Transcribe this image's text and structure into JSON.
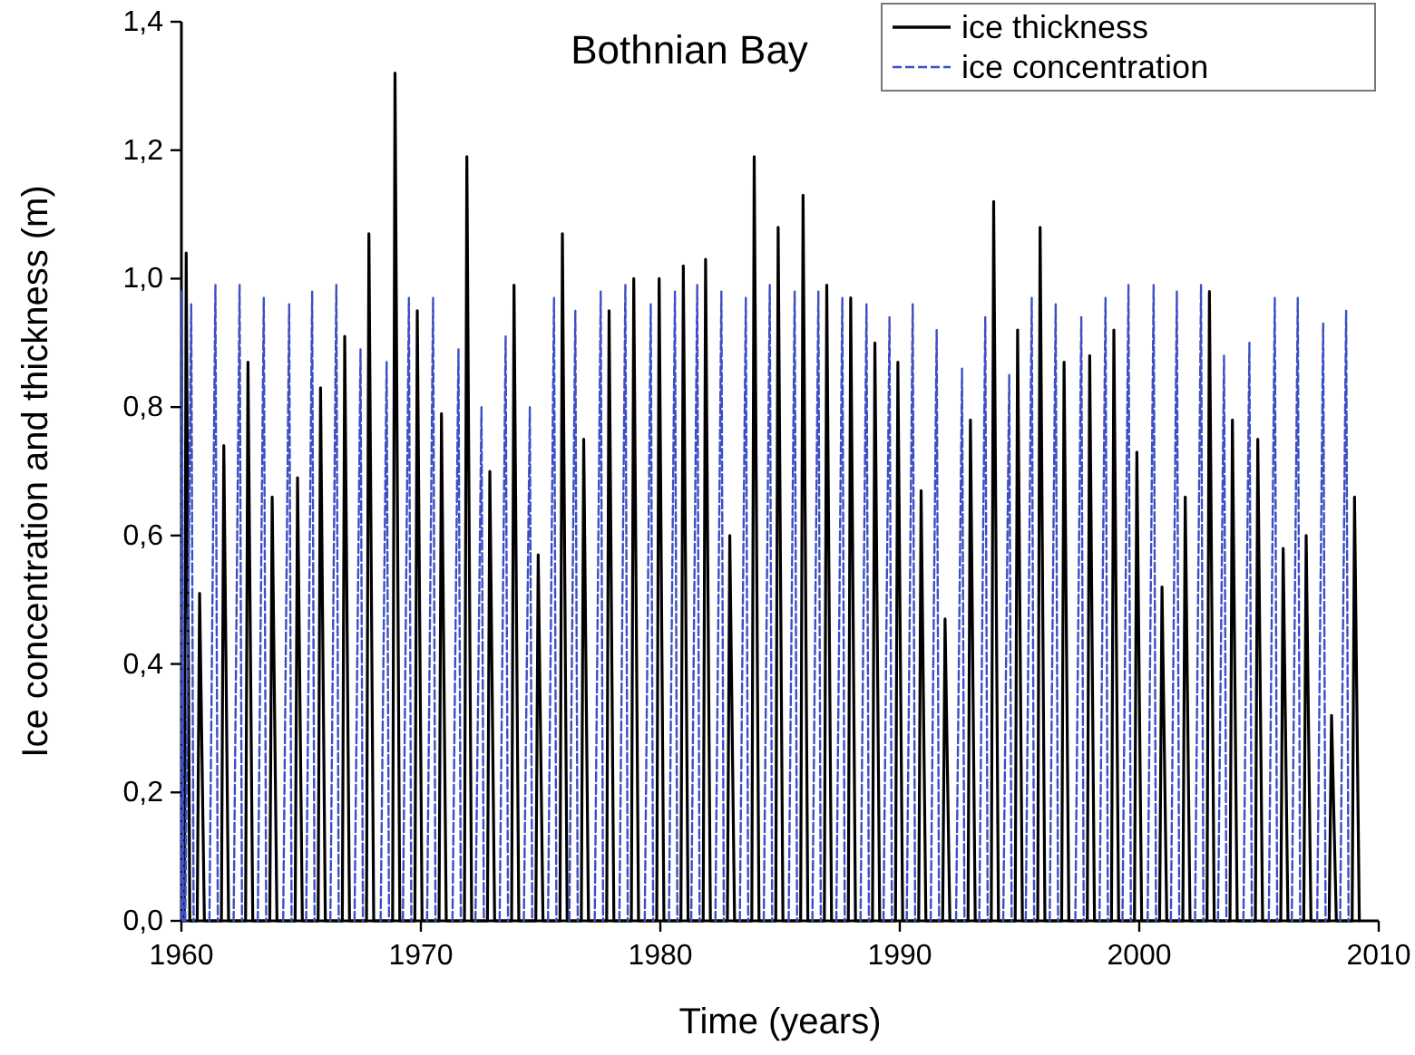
{
  "chart_data": {
    "type": "line",
    "title": "Bothnian Bay",
    "xlabel": "Time (years)",
    "ylabel": "Ice concentration and thickness (m)",
    "series": [
      {
        "name": "ice thickness",
        "color": "#000000",
        "line_style": "solid",
        "x": [
          1960.12,
          1960.2,
          1960.35,
          1960.66,
          1960.76,
          1960.96,
          1961.67,
          1961.77,
          1961.97,
          1962.68,
          1962.78,
          1962.98,
          1963.69,
          1963.79,
          1963.99,
          1964.75,
          1964.85,
          1965.05,
          1965.71,
          1965.81,
          1966.01,
          1966.72,
          1966.82,
          1967.02,
          1967.73,
          1967.83,
          1968.03,
          1968.82,
          1968.92,
          1969.12,
          1969.75,
          1969.85,
          1970.05,
          1970.76,
          1970.86,
          1971.06,
          1971.82,
          1971.92,
          1972.12,
          1972.78,
          1972.88,
          1973.08,
          1973.79,
          1973.89,
          1974.09,
          1974.8,
          1974.9,
          1975.1,
          1975.81,
          1975.91,
          1976.11,
          1976.7,
          1976.8,
          1977,
          1977.76,
          1977.86,
          1978.06,
          1978.79,
          1978.89,
          1979.09,
          1979.85,
          1979.95,
          1980.15,
          1980.86,
          1980.96,
          1981.16,
          1981.79,
          1981.89,
          1982.09,
          1982.8,
          1982.9,
          1983.1,
          1983.82,
          1983.92,
          1984.12,
          1984.82,
          1984.92,
          1985.12,
          1985.86,
          1985.96,
          1986.16,
          1986.85,
          1986.95,
          1987.15,
          1987.85,
          1987.95,
          1988.15,
          1988.86,
          1988.96,
          1989.16,
          1989.82,
          1989.92,
          1990.12,
          1990.79,
          1990.89,
          1991.09,
          1991.79,
          1991.89,
          1992.09,
          1992.85,
          1992.95,
          1993.15,
          1993.82,
          1993.92,
          1994.12,
          1994.82,
          1994.92,
          1995.12,
          1995.76,
          1995.86,
          1996.06,
          1996.76,
          1996.86,
          1997.06,
          1997.83,
          1997.93,
          1998.13,
          1998.84,
          1998.94,
          1999.14,
          1999.8,
          1999.9,
          2000.1,
          2000.85,
          2000.95,
          2001.15,
          2001.82,
          2001.92,
          2002.12,
          2002.83,
          2002.93,
          2003.13,
          2003.79,
          2003.89,
          2004.09,
          2004.85,
          2004.95,
          2005.15,
          2005.91,
          2006.01,
          2006.21,
          2006.87,
          2006.97,
          2007.17,
          2007.93,
          2008.03,
          2008.23,
          2008.89,
          2008.99,
          2009.19
        ],
        "values": [
          0,
          1.04,
          0,
          0,
          0.51,
          0,
          0,
          0.74,
          0,
          0,
          0.87,
          0,
          0,
          0.66,
          0,
          0,
          0.69,
          0,
          0,
          0.83,
          0,
          0,
          0.91,
          0,
          0,
          1.07,
          0,
          0,
          1.32,
          0,
          0,
          0.95,
          0,
          0,
          0.79,
          0,
          0,
          1.19,
          0,
          0,
          0.7,
          0,
          0,
          0.99,
          0,
          0,
          0.57,
          0,
          0,
          1.07,
          0,
          0,
          0.75,
          0,
          0,
          0.95,
          0,
          0,
          1,
          0,
          0,
          1,
          0,
          0,
          1.02,
          0,
          0,
          1.03,
          0,
          0,
          0.6,
          0,
          0,
          1.19,
          0,
          0,
          1.08,
          0,
          0,
          1.13,
          0,
          0,
          0.99,
          0,
          0,
          0.97,
          0,
          0,
          0.9,
          0,
          0,
          0.87,
          0,
          0,
          0.67,
          0,
          0,
          0.47,
          0,
          0,
          0.78,
          0,
          0,
          1.12,
          0,
          0,
          0.92,
          0,
          0,
          1.08,
          0,
          0,
          0.87,
          0,
          0,
          0.88,
          0,
          0,
          0.92,
          0,
          0,
          0.73,
          0,
          0,
          0.52,
          0,
          0,
          0.66,
          0,
          0,
          0.98,
          0,
          0,
          0.78,
          0,
          0,
          0.75,
          0,
          0,
          0.58,
          0,
          0,
          0.6,
          0,
          0,
          0.32,
          0,
          0,
          0.66,
          0
        ]
      },
      {
        "name": "ice concentration",
        "color": "#3c4fc4",
        "line_style": "dashed",
        "x": [
          1960,
          1960.02,
          1960.08,
          1960.1,
          1960.16,
          1960.41,
          1960.51,
          1960.56,
          1961.17,
          1961.42,
          1961.52,
          1961.57,
          1962.18,
          1962.43,
          1962.53,
          1962.58,
          1963.19,
          1963.44,
          1963.54,
          1963.59,
          1964.25,
          1964.5,
          1964.6,
          1964.65,
          1965.21,
          1965.46,
          1965.56,
          1965.61,
          1966.22,
          1966.47,
          1966.57,
          1966.62,
          1967.23,
          1967.48,
          1967.58,
          1967.63,
          1968.32,
          1968.57,
          1968.67,
          1968.72,
          1969.25,
          1969.5,
          1969.6,
          1969.65,
          1970.26,
          1970.51,
          1970.61,
          1970.66,
          1971.32,
          1971.57,
          1971.67,
          1971.72,
          1972.28,
          1972.53,
          1972.63,
          1972.68,
          1973.29,
          1973.54,
          1973.64,
          1973.69,
          1974.3,
          1974.55,
          1974.65,
          1974.7,
          1975.31,
          1975.56,
          1975.66,
          1975.71,
          1976.2,
          1976.45,
          1976.55,
          1976.6,
          1977.26,
          1977.51,
          1977.61,
          1977.66,
          1978.29,
          1978.54,
          1978.64,
          1978.69,
          1979.35,
          1979.6,
          1979.7,
          1979.75,
          1980.36,
          1980.61,
          1980.71,
          1980.76,
          1981.29,
          1981.54,
          1981.64,
          1981.69,
          1982.3,
          1982.55,
          1982.65,
          1982.7,
          1983.32,
          1983.57,
          1983.67,
          1983.72,
          1984.32,
          1984.57,
          1984.67,
          1984.72,
          1985.36,
          1985.61,
          1985.71,
          1985.76,
          1986.35,
          1986.6,
          1986.7,
          1986.75,
          1987.35,
          1987.6,
          1987.7,
          1987.75,
          1988.36,
          1988.61,
          1988.71,
          1988.76,
          1989.32,
          1989.57,
          1989.67,
          1989.72,
          1990.29,
          1990.54,
          1990.64,
          1990.69,
          1991.29,
          1991.54,
          1991.64,
          1991.69,
          1992.35,
          1992.6,
          1992.7,
          1992.75,
          1993.32,
          1993.57,
          1993.67,
          1993.72,
          1994.32,
          1994.57,
          1994.67,
          1994.72,
          1995.26,
          1995.51,
          1995.61,
          1995.66,
          1996.26,
          1996.51,
          1996.61,
          1996.66,
          1997.33,
          1997.58,
          1997.68,
          1997.73,
          1998.34,
          1998.59,
          1998.69,
          1998.74,
          1999.3,
          1999.55,
          1999.65,
          1999.7,
          2000.35,
          2000.6,
          2000.7,
          2000.75,
          2001.32,
          2001.57,
          2001.67,
          2001.72,
          2002.33,
          2002.58,
          2002.68,
          2002.73,
          2003.29,
          2003.54,
          2003.64,
          2003.69,
          2004.35,
          2004.6,
          2004.7,
          2004.75,
          2005.41,
          2005.66,
          2005.76,
          2005.81,
          2006.37,
          2006.62,
          2006.72,
          2006.77,
          2007.43,
          2007.68,
          2007.78,
          2007.83,
          2008.39,
          2008.64,
          2008.74
        ],
        "values": [
          0,
          0.98,
          0,
          null,
          0,
          0.96,
          0,
          null,
          0,
          0.99,
          0,
          null,
          0,
          0.99,
          0,
          null,
          0,
          0.97,
          0,
          null,
          0,
          0.96,
          0,
          null,
          0,
          0.98,
          0,
          null,
          0,
          0.99,
          0,
          null,
          0,
          0.89,
          0,
          null,
          0,
          0.87,
          0,
          null,
          0,
          0.97,
          0,
          null,
          0,
          0.97,
          0,
          null,
          0,
          0.89,
          0,
          null,
          0,
          0.8,
          0,
          null,
          0,
          0.91,
          0,
          null,
          0,
          0.8,
          0,
          null,
          0,
          0.97,
          0,
          null,
          0,
          0.95,
          0,
          null,
          0,
          0.98,
          0,
          null,
          0,
          0.99,
          0,
          null,
          0,
          0.96,
          0,
          null,
          0,
          0.98,
          0,
          null,
          0,
          0.99,
          0,
          null,
          0,
          0.98,
          0,
          null,
          0,
          0.97,
          0,
          null,
          0,
          0.99,
          0,
          null,
          0,
          0.98,
          0,
          null,
          0,
          0.98,
          0,
          null,
          0,
          0.97,
          0,
          null,
          0,
          0.96,
          0,
          null,
          0,
          0.94,
          0,
          null,
          0,
          0.96,
          0,
          null,
          0,
          0.92,
          0,
          null,
          0,
          0.86,
          0,
          null,
          0,
          0.94,
          0,
          null,
          0,
          0.85,
          0,
          null,
          0,
          0.97,
          0,
          null,
          0,
          0.96,
          0,
          null,
          0,
          0.94,
          0,
          null,
          0,
          0.97,
          0,
          null,
          0,
          0.99,
          0,
          null,
          0,
          0.99,
          0,
          null,
          0,
          0.98,
          0,
          null,
          0,
          0.99,
          0,
          null,
          0,
          0.88,
          0,
          null,
          0,
          0.9,
          0,
          null,
          0,
          0.97,
          0,
          null,
          0,
          0.97,
          0,
          null,
          0,
          0.93,
          0,
          null,
          0,
          0.95,
          0
        ]
      }
    ],
    "xlim": [
      1960,
      2010
    ],
    "xticks": [
      1960,
      1970,
      1980,
      1990,
      2000,
      2010
    ],
    "ylim": [
      0,
      1.4
    ],
    "yticks": [
      {
        "value": 0,
        "label": "0,0"
      },
      {
        "value": 0.2,
        "label": "0,2"
      },
      {
        "value": 0.4,
        "label": "0,4"
      },
      {
        "value": 0.6,
        "label": "0,6"
      },
      {
        "value": 0.8,
        "label": "0,8"
      },
      {
        "value": 1,
        "label": "1,0"
      },
      {
        "value": 1.2,
        "label": "1,2"
      },
      {
        "value": 1.4,
        "label": "1,4"
      }
    ],
    "legend": "top right",
    "grid": false
  }
}
